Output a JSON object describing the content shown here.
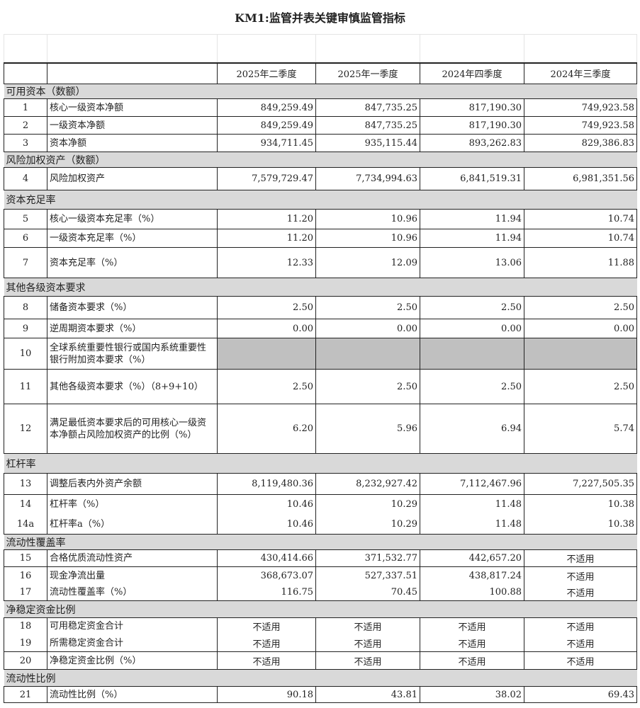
{
  "title": "KM1:监管并表关键审慎监管指标",
  "columns": [
    "2025年二季度",
    "2025年一季度",
    "2024年四季度",
    "2024年三季度"
  ],
  "rows": [
    {
      "section": "可用资本（数额）"
    },
    {
      "no": "1",
      "label": "核心一级资本净额",
      "values": [
        "849,259.49",
        "847,735.25",
        "817,190.30",
        "749,923.58"
      ]
    },
    {
      "no": "2",
      "label": "一级资本净额",
      "values": [
        "849,259.49",
        "847,735.25",
        "817,190.30",
        "749,923.58"
      ]
    },
    {
      "no": "3",
      "label": "资本净额",
      "values": [
        "934,711.45",
        "935,115.44",
        "893,262.83",
        "829,386.83"
      ]
    },
    {
      "section": "风险加权资产（数额）"
    },
    {
      "no": "4",
      "label": "风险加权资产",
      "values": [
        "7,579,729.47",
        "7,734,994.63",
        "6,841,519.31",
        "6,981,351.56"
      ]
    },
    {
      "section": "资本充足率"
    },
    {
      "no": "5",
      "label": "核心一级资本充足率（%）",
      "values": [
        "11.20",
        "10.96",
        "11.94",
        "10.74"
      ]
    },
    {
      "no": "6",
      "label": "一级资本充足率（%）",
      "values": [
        "11.20",
        "10.96",
        "11.94",
        "10.74"
      ]
    },
    {
      "no": "7",
      "label": "资本充足率（%）",
      "values": [
        "12.33",
        "12.09",
        "13.06",
        "11.88"
      ]
    },
    {
      "section": "其他各级资本要求"
    },
    {
      "no": "8",
      "label": "储备资本要求（%）",
      "values": [
        "2.50",
        "2.50",
        "2.50",
        "2.50"
      ]
    },
    {
      "no": "9",
      "label": "逆周期资本要求（%）",
      "values": [
        "0.00",
        "0.00",
        "0.00",
        "0.00"
      ]
    },
    {
      "no": "10",
      "label": "全球系统重要性银行或国内系统重要性银行附加资本要求（%）",
      "values": [
        "",
        "",
        "",
        ""
      ]
    },
    {
      "no": "11",
      "label": "其他各级资本要求（%）（8+9+10）",
      "values": [
        "2.50",
        "2.50",
        "2.50",
        "2.50"
      ]
    },
    {
      "no": "12",
      "label": "满足最低资本要求后的可用核心一级资本净额占风险加权资产的比例（%）",
      "values": [
        "6.20",
        "5.96",
        "6.94",
        "5.74"
      ]
    },
    {
      "section": "杠杆率"
    },
    {
      "no": "13",
      "label": "调整后表内外资产余额",
      "values": [
        "8,119,480.36",
        "8,232,927.42",
        "7,112,467.96",
        "7,227,505.35"
      ]
    },
    {
      "no": "14",
      "label": "杠杆率（%）",
      "values": [
        "10.46",
        "10.29",
        "11.48",
        "10.38"
      ]
    },
    {
      "no": "14a",
      "label": "杠杆率a（%）",
      "values": [
        "10.46",
        "10.29",
        "11.48",
        "10.38"
      ]
    },
    {
      "section": "流动性覆盖率"
    },
    {
      "no": "15",
      "label": "合格优质流动性资产",
      "values": [
        "430,414.66",
        "371,532.77",
        "442,657.20",
        "不适用"
      ]
    },
    {
      "no": "16",
      "label": "现金净流出量",
      "values": [
        "368,673.07",
        "527,337.51",
        "438,817.24",
        "不适用"
      ]
    },
    {
      "no": "17",
      "label": "流动性覆盖率（%）",
      "values": [
        "116.75",
        "70.45",
        "100.88",
        "不适用"
      ]
    },
    {
      "section": "净稳定资金比例"
    },
    {
      "no": "18",
      "label": "可用稳定资金合计",
      "values": [
        "不适用",
        "不适用",
        "不适用",
        "不适用"
      ]
    },
    {
      "no": "19",
      "label": "所需稳定资金合计",
      "values": [
        "不适用",
        "不适用",
        "不适用",
        "不适用"
      ]
    },
    {
      "no": "20",
      "label": "净稳定资金比例（%）",
      "values": [
        "不适用",
        "不适用",
        "不适用",
        "不适用"
      ]
    },
    {
      "section": "流动性比例"
    },
    {
      "no": "21",
      "label": "流动性比例（%）",
      "values": [
        "90.18",
        "43.81",
        "38.02",
        "69.43"
      ]
    }
  ]
}
